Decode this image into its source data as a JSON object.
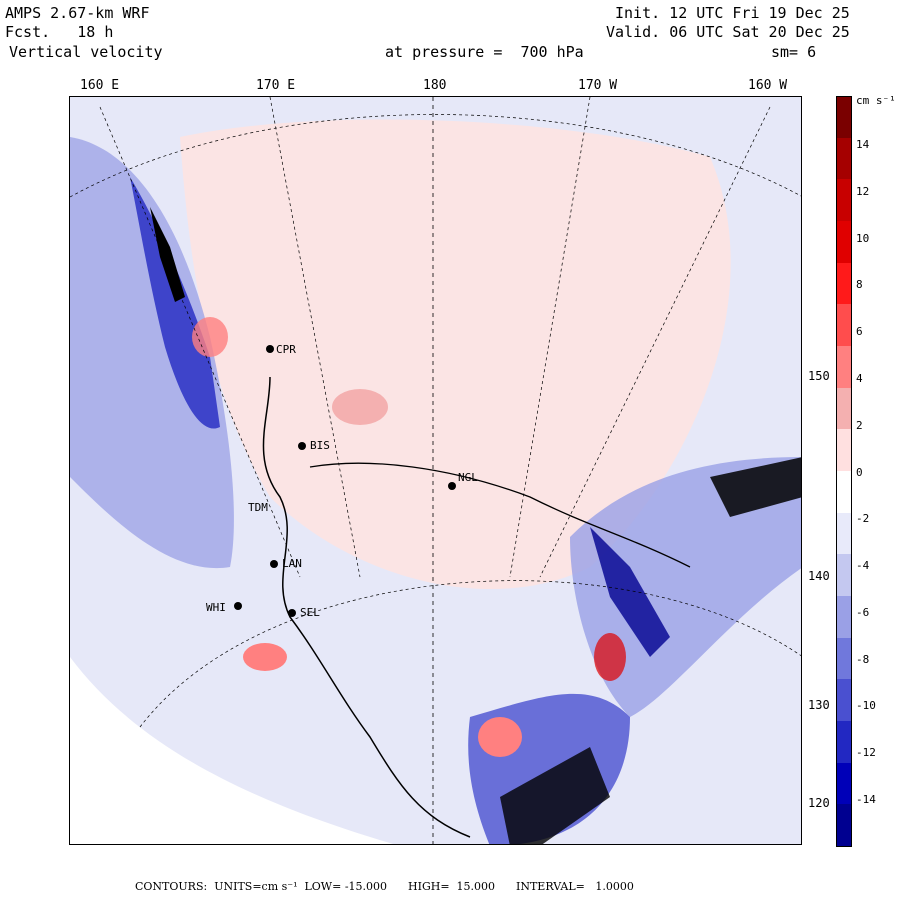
{
  "header": {
    "line1_left": "AMPS 2.67-km WRF",
    "line2_left": "Fcst.   18 h",
    "line3_left": "Vertical velocity",
    "line1_right": "Init. 12 UTC Fri 19 Dec 25",
    "line2_right": "Valid. 06 UTC Sat 20 Dec 25",
    "pressure": "at pressure =  700 hPa",
    "smoothing": "sm= 6"
  },
  "longitude_labels": [
    "160 E",
    "170 E",
    "180",
    "170 W",
    "160 W"
  ],
  "latitude_labels": [
    "150 W",
    "140 W",
    "130 W",
    "120 W"
  ],
  "stations": [
    "CPR",
    "BIS",
    "NGL",
    "TDM",
    "LAN",
    "WHI",
    "SEL"
  ],
  "colorbar": {
    "units": "cm s⁻¹",
    "ticks": [
      "14",
      "12",
      "10",
      "8",
      "6",
      "4",
      "2",
      "0",
      "-2",
      "-4",
      "-6",
      "-8",
      "-10",
      "-12",
      "-14"
    ],
    "colors": [
      "#7a0000",
      "#a50000",
      "#c80000",
      "#e00000",
      "#ff1a1a",
      "#ff4d4d",
      "#ff8080",
      "#f4b0b0",
      "#ffe0e0",
      "#ffffff",
      "#e8eafa",
      "#c4c8f0",
      "#9aa0e6",
      "#7078dc",
      "#4a50d0",
      "#2228c2",
      "#0000b8",
      "#000090"
    ]
  },
  "footer": {
    "text": "CONTOURS:  UNITS=cm s⁻¹  LOW= -15.000      HIGH=  15.000      INTERVAL=   1.0000"
  }
}
